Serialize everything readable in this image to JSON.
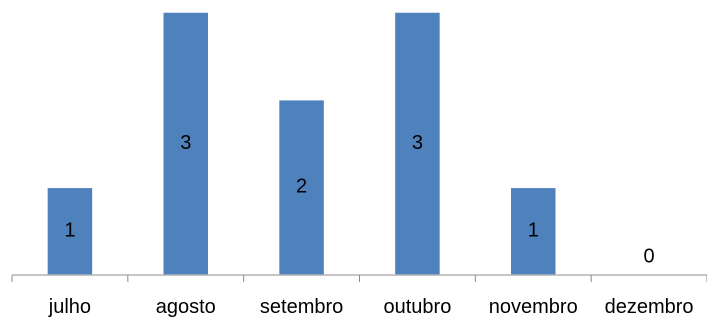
{
  "chart_data": {
    "type": "bar",
    "categories": [
      "julho",
      "agosto",
      "setembro",
      "outubro",
      "novembro",
      "dezembro"
    ],
    "values": [
      1,
      3,
      2,
      3,
      1,
      0
    ],
    "title": "",
    "xlabel": "",
    "ylabel": "",
    "ylim": [
      0,
      3
    ],
    "grid": false,
    "legend": "none",
    "data_labels": "inside-bar",
    "colors": {
      "bar": "#4f81bd",
      "bar_border": "#ffffff",
      "axis": "#8c8c8c"
    }
  }
}
